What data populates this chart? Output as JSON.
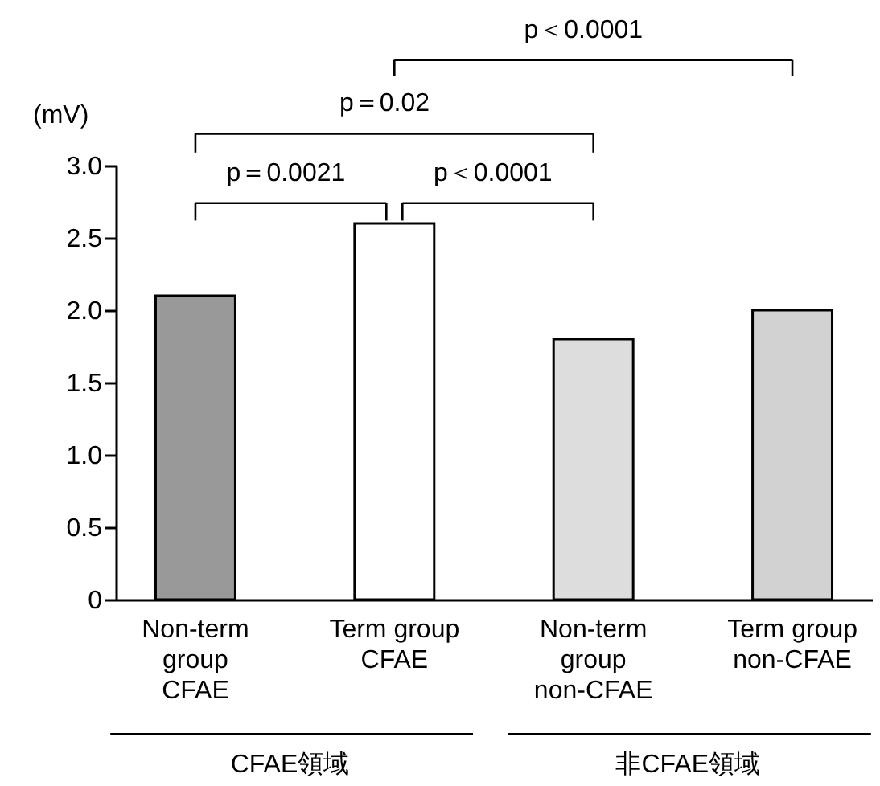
{
  "chart_data": {
    "type": "bar",
    "categories": [
      "Non-term group CFAE",
      "Term group CFAE",
      "Non-term group non-CFAE",
      "Term group non-CFAE"
    ],
    "values": [
      2.1,
      2.6,
      1.8,
      2.0
    ],
    "colors": [
      "#999999",
      "#ffffff",
      "#dddddd",
      "#d2d2d2"
    ],
    "ylabel": "(mV)",
    "ylim": [
      0,
      3
    ],
    "yticks": [
      0,
      0.5,
      {
        "value": 1,
        "label": "1.0"
      },
      1.5,
      {
        "value": 2,
        "label": "2.0"
      },
      2.5,
      {
        "value": 3,
        "label": "3.0"
      }
    ],
    "annotations": [
      "p＝0.0021",
      "p＜0.0001",
      "p＝0.02",
      "p＜0.0001",
      "CFAE領域",
      "非CFAE領域"
    ]
  }
}
